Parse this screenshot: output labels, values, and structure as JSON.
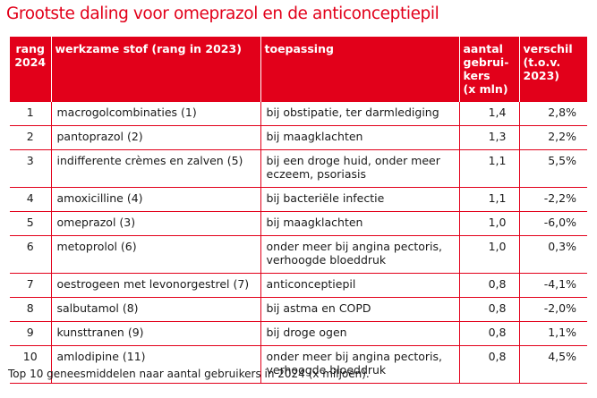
{
  "title": "Grootste daling voor omeprazol en de anticonceptiepil",
  "headers": {
    "rank": [
      "rang",
      "2024"
    ],
    "substance": "werkzame stof (rang in 2023)",
    "application": "toepassing",
    "users": [
      "aantal",
      "gebrui-",
      "kers",
      "(x mln)"
    ],
    "difference": [
      "verschil",
      "(t.o.v.",
      "2023)"
    ]
  },
  "rows": [
    {
      "rank": "1",
      "substance": "macrogolcombinaties (1)",
      "application": [
        "bij obstipatie, ter darmlediging"
      ],
      "users": "1,4",
      "difference": "2,8%"
    },
    {
      "rank": "2",
      "substance": "pantoprazol (2)",
      "application": [
        "bij maagklachten"
      ],
      "users": "1,3",
      "difference": "2,2%"
    },
    {
      "rank": "3",
      "substance": "indifferente crèmes en zalven (5)",
      "application": [
        "bij een droge huid, onder meer",
        "eczeem, psoriasis"
      ],
      "users": "1,1",
      "difference": "5,5%"
    },
    {
      "rank": "4",
      "substance": "amoxicilline (4)",
      "application": [
        "bij bacteriële infectie"
      ],
      "users": "1,1",
      "difference": "-2,2%"
    },
    {
      "rank": "5",
      "substance": "omeprazol (3)",
      "application": [
        "bij maagklachten"
      ],
      "users": "1,0",
      "difference": "-6,0%"
    },
    {
      "rank": "6",
      "substance": "metoprolol (6)",
      "application": [
        "onder meer bij angina pectoris,",
        "verhoogde bloeddruk"
      ],
      "users": "1,0",
      "difference": "0,3%"
    },
    {
      "rank": "7",
      "substance": "oestrogeen met levonorgestrel (7)",
      "application": [
        "anticonceptiepil"
      ],
      "users": "0,8",
      "difference": "-4,1%"
    },
    {
      "rank": "8",
      "substance": "salbutamol (8)",
      "application": [
        "bij astma en COPD"
      ],
      "users": "0,8",
      "difference": "-2,0%"
    },
    {
      "rank": "9",
      "substance": "kunsttranen (9)",
      "application": [
        "bij droge ogen"
      ],
      "users": "0,8",
      "difference": "1,1%"
    },
    {
      "rank": "10",
      "substance": "amlodipine (11)",
      "application": [
        "onder meer bij angina pectoris,",
        "verhoogde bloeddruk"
      ],
      "users": "0,8",
      "difference": "4,5%"
    }
  ],
  "caption": "Top 10 geneesmiddelen naar aantal gebruikers in 2024 (x miljoen).",
  "colors": {
    "accent": "#e2001a",
    "text": "#1a1a1a",
    "header_text": "#ffffff"
  }
}
